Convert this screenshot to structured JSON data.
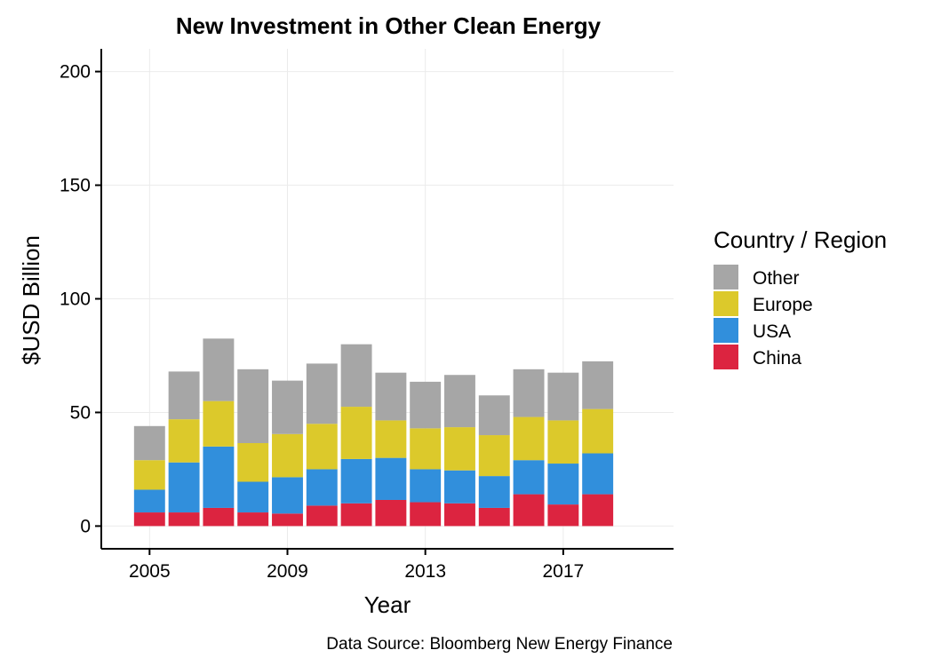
{
  "chart_data": {
    "type": "bar",
    "stacked": true,
    "title": "New Investment in Other Clean Energy",
    "xlabel": "Year",
    "ylabel": "$USD Billion",
    "caption": "Data Source: Bloomberg New Energy Finance",
    "x": [
      2005,
      2006,
      2007,
      2008,
      2009,
      2010,
      2011,
      2012,
      2013,
      2014,
      2015,
      2016,
      2017,
      2018
    ],
    "xlim": [
      2003.6,
      2020.2
    ],
    "ylim": [
      -10,
      210
    ],
    "x_ticks": [
      2005,
      2009,
      2013,
      2017
    ],
    "x_tick_labels": [
      "2005",
      "2009",
      "2013",
      "2017"
    ],
    "y_ticks": [
      0,
      50,
      100,
      150,
      200
    ],
    "y_tick_labels": [
      "0",
      "50",
      "100",
      "150",
      "200"
    ],
    "grid": true,
    "legend": {
      "title": "Country / Region",
      "position": "right",
      "entries": [
        "Other",
        "Europe",
        "USA",
        "China"
      ]
    },
    "series": [
      {
        "name": "China",
        "color": "#dc2440",
        "values": [
          6,
          6,
          8,
          6,
          5.5,
          9,
          10,
          11.5,
          10.5,
          10,
          8,
          14,
          9.5,
          14
        ]
      },
      {
        "name": "USA",
        "color": "#318fdc",
        "values": [
          10,
          22,
          27,
          13.5,
          16,
          16,
          19.5,
          18.5,
          14.5,
          14.5,
          14,
          15,
          18,
          18
        ]
      },
      {
        "name": "Europe",
        "color": "#dcc92b",
        "values": [
          13,
          19,
          20,
          17,
          19,
          20,
          23,
          16.5,
          18,
          19,
          18,
          19,
          19,
          19.5
        ]
      },
      {
        "name": "Other",
        "color": "#a6a6a6",
        "values": [
          15,
          21,
          27.5,
          32.5,
          23.5,
          26.5,
          27.5,
          21,
          20.5,
          23,
          17.5,
          21,
          21,
          21
        ]
      }
    ]
  }
}
